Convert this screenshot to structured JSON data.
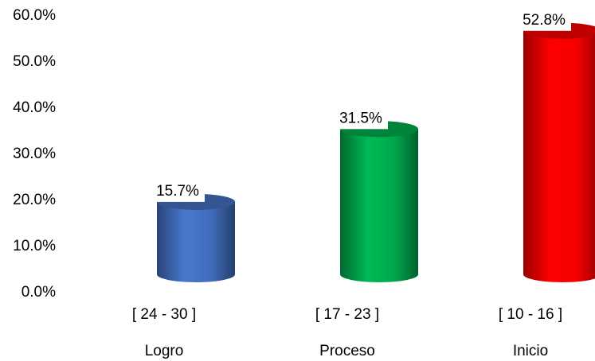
{
  "chart_data": {
    "type": "bar",
    "categories": [
      "[ 24 - 30 ]",
      "[ 17 - 23 ]",
      "[ 10 - 16 ]"
    ],
    "category_groups": [
      "Logro",
      "Proceso",
      "Inicio"
    ],
    "values": [
      15.7,
      31.5,
      52.8
    ],
    "value_labels": [
      "15.7%",
      "31.5%",
      "52.8%"
    ],
    "colors": [
      "#4472c4",
      "#00b050",
      "#ff0000"
    ],
    "ylim": [
      0,
      60
    ],
    "yticks": [
      {
        "value": 0,
        "label": "0.0%"
      },
      {
        "value": 10,
        "label": "10.0%"
      },
      {
        "value": 20,
        "label": "20.0%"
      },
      {
        "value": 30,
        "label": "30.0%"
      },
      {
        "value": 40,
        "label": "40.0%"
      },
      {
        "value": 50,
        "label": "50.0%"
      },
      {
        "value": 60,
        "label": "60.0%"
      }
    ],
    "grid": false
  }
}
